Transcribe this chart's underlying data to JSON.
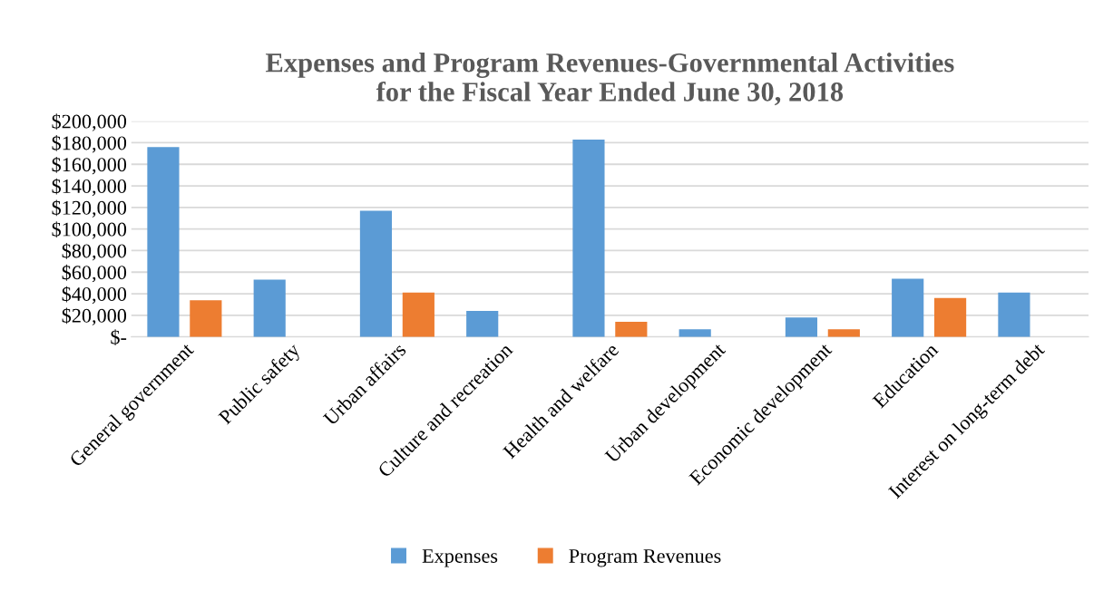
{
  "chart_data": {
    "type": "bar",
    "title": "Expenses and Program Revenues-Governmental Activities\nfor the Fiscal Year Ended June 30, 2018",
    "categories": [
      "General government",
      "Public safety",
      "Urban affairs",
      "Culture and recreation",
      "Health and welfare",
      "Urban development",
      "Economic development",
      "Education",
      "Interest on long-term debt"
    ],
    "series": [
      {
        "name": "Expenses",
        "color": "#5b9bd5",
        "values": [
          176000,
          53000,
          117000,
          24000,
          183000,
          7000,
          18000,
          54000,
          41000
        ]
      },
      {
        "name": "Program Revenues",
        "color": "#ed7d31",
        "values": [
          34000,
          null,
          41000,
          0,
          14000,
          0,
          7000,
          36000,
          null
        ]
      }
    ],
    "ylim": [
      0,
      200000
    ],
    "yticks": [
      {
        "value": 0,
        "label": "$-"
      },
      {
        "value": 20000,
        "label": "$20,000"
      },
      {
        "value": 40000,
        "label": "$40,000"
      },
      {
        "value": 60000,
        "label": "$60,000"
      },
      {
        "value": 80000,
        "label": "$80,000"
      },
      {
        "value": 100000,
        "label": "$100,000"
      },
      {
        "value": 120000,
        "label": "$120,000"
      },
      {
        "value": 140000,
        "label": "$140,000"
      },
      {
        "value": 160000,
        "label": "$160,000"
      },
      {
        "value": 180000,
        "label": "$180,000"
      },
      {
        "value": 200000,
        "label": "$200,000"
      }
    ],
    "grid": "y",
    "legend": "bottom"
  }
}
